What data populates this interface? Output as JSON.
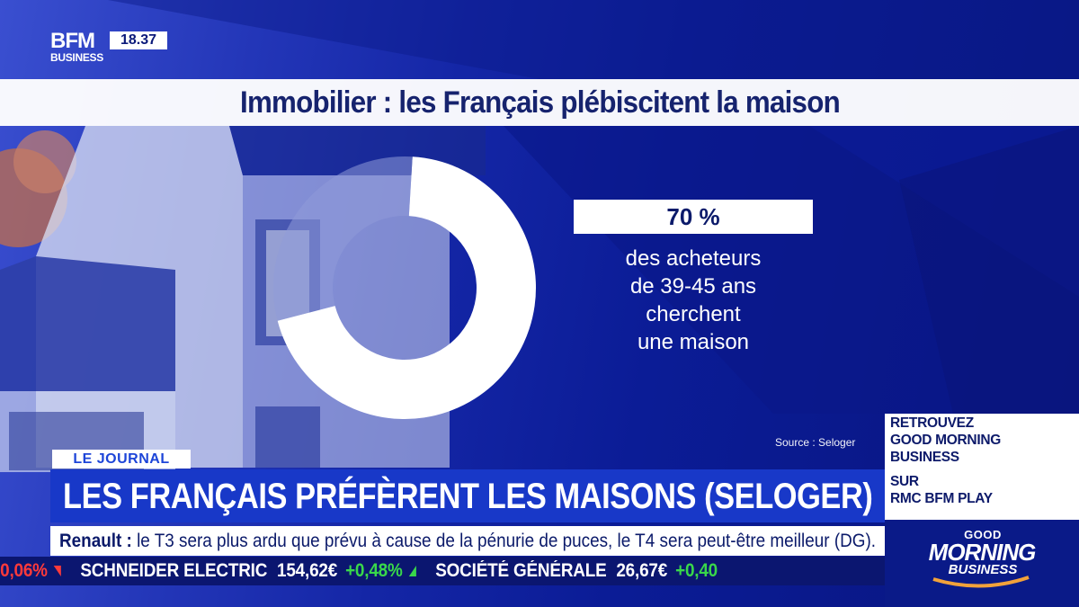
{
  "channel": {
    "logo_top": "BFM",
    "logo_bottom": "BUSINESS",
    "clock": "18.37"
  },
  "infographic": {
    "title": "Immobilier : les Français plébiscitent la maison",
    "stat_value": "70 %",
    "stat_lines": [
      "des acheteurs",
      "de 39-45 ans",
      "cherchent",
      "une maison"
    ],
    "source": "Source : Seloger",
    "chart_data": {
      "type": "pie",
      "variant": "donut",
      "categories": [
        "",
        ""
      ],
      "values": [
        70,
        30
      ],
      "colors": [
        "#ffffff",
        "#8f9bd8"
      ]
    }
  },
  "lower_third": {
    "tag": "LE JOURNAL",
    "headline": "LES FRANÇAIS PRÉFÈRENT LES MAISONS (SELOGER)",
    "news_subject": "Renault :",
    "news_text": " le T3 sera plus ardu que prévu à cause de la pénurie de puces, le T4 sera peut-être meilleur (DG)."
  },
  "promo": {
    "lines": [
      "RETROUVEZ",
      "GOOD MORNING",
      "BUSINESS"
    ],
    "lines2": [
      "SUR",
      "RMC BFM PLAY"
    ]
  },
  "ticker": {
    "items": [
      {
        "name": "",
        "price": "",
        "change": "-0,06%",
        "dir": "down"
      },
      {
        "name": "SCHNEIDER ELECTRIC",
        "price": "154,62€",
        "change": "+0,48%",
        "dir": "up"
      },
      {
        "name": "SOCIÉTÉ GÉNÉRALE",
        "price": "26,67€",
        "change": "+0,40",
        "dir": "up"
      }
    ]
  },
  "show_logo": {
    "top": "GOOD",
    "middle": "MORNING",
    "bottom": "BUSINESS"
  },
  "colors": {
    "accent_blue": "#1838c8",
    "navy": "#0b1670",
    "up": "#39d84a",
    "down": "#ff3a3a"
  }
}
